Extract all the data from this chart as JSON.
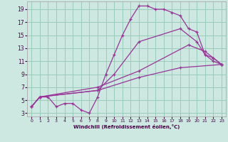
{
  "xlabel": "Windchill (Refroidissement éolien,°C)",
  "bg_color": "#cce8e0",
  "line_color": "#993399",
  "grid_color": "#99ccbb",
  "xlim": [
    -0.5,
    23.5
  ],
  "ylim": [
    2.5,
    20.2
  ],
  "xticks": [
    0,
    1,
    2,
    3,
    4,
    5,
    6,
    7,
    8,
    9,
    10,
    11,
    12,
    13,
    14,
    15,
    16,
    17,
    18,
    19,
    20,
    21,
    22,
    23
  ],
  "yticks": [
    3,
    5,
    7,
    9,
    11,
    13,
    15,
    17,
    19
  ],
  "lines": [
    {
      "x": [
        0,
        1,
        2,
        3,
        4,
        5,
        6,
        7,
        8,
        9,
        10,
        11,
        12,
        13,
        14,
        15,
        16,
        17,
        18,
        19,
        20,
        21,
        22,
        23
      ],
      "y": [
        4.0,
        5.5,
        5.5,
        4.0,
        4.5,
        4.5,
        3.5,
        3.0,
        5.5,
        9.0,
        12.0,
        15.0,
        17.5,
        19.5,
        19.5,
        19.0,
        19.0,
        18.5,
        18.0,
        16.0,
        15.5,
        12.0,
        11.0,
        10.5
      ]
    },
    {
      "x": [
        0,
        1,
        8,
        10,
        13,
        18,
        20,
        21,
        22,
        23
      ],
      "y": [
        4.0,
        5.5,
        6.5,
        9.0,
        14.0,
        16.0,
        14.0,
        12.0,
        11.5,
        10.5
      ]
    },
    {
      "x": [
        0,
        1,
        8,
        13,
        19,
        21,
        22,
        23
      ],
      "y": [
        4.0,
        5.5,
        7.0,
        9.5,
        13.5,
        12.5,
        11.5,
        10.5
      ]
    },
    {
      "x": [
        0,
        1,
        8,
        13,
        18,
        23
      ],
      "y": [
        4.0,
        5.5,
        6.5,
        8.5,
        10.0,
        10.5
      ]
    }
  ]
}
